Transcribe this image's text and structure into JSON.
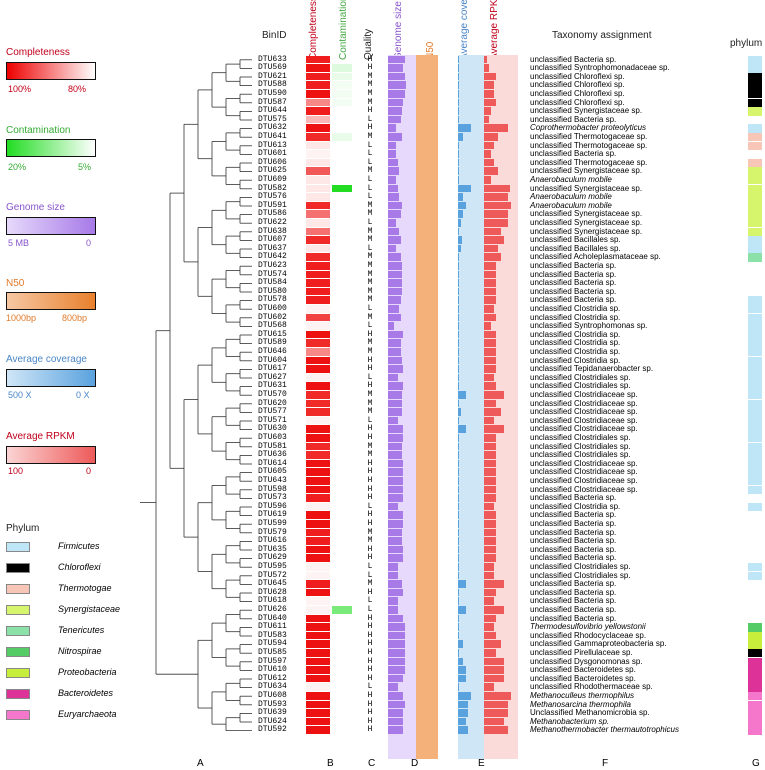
{
  "legends": {
    "completeness": {
      "title": "Completeness",
      "left": "100%",
      "right": "80%",
      "colors": [
        "#ee0000",
        "#ffffff"
      ]
    },
    "contamination": {
      "title": "Contamination",
      "left": "20%",
      "right": "5%",
      "colors": [
        "#22dd22",
        "#ffffff"
      ]
    },
    "genome_size": {
      "title": "Genome size",
      "left": "5 MB",
      "right": "0",
      "colors": [
        "#e6d9fb",
        "#a77ae8"
      ]
    },
    "n50": {
      "title": "N50",
      "left": "1000bp",
      "right": "800bp",
      "colors": [
        "#f6c8a3",
        "#e8802e"
      ]
    },
    "avg_coverage": {
      "title": "Average coverage",
      "left": "500 X",
      "right": "0 X",
      "colors": [
        "#cfe6f7",
        "#5aa2de"
      ]
    },
    "avg_rpkm": {
      "title": "Average RPKM",
      "left": "100",
      "right": "0",
      "colors": [
        "#fbd4d4",
        "#ee5a5a"
      ]
    }
  },
  "headers": {
    "binid": "BinID",
    "completeness": "Completeness",
    "contamination": "Contamination",
    "quality": "Quality",
    "genome_size": "Genome size",
    "n50": "N50",
    "avg_coverage": "Average coverage",
    "avg_rpkm": "Average RPKM",
    "taxonomy": "Taxonomy assignment",
    "phylum": "phylum"
  },
  "panel_labels": {
    "A": "A",
    "B": "B",
    "C": "C",
    "D": "D",
    "E": "E",
    "F": "F",
    "G": "G"
  },
  "phylum_legend": {
    "title": "Phylum",
    "items": [
      {
        "name": "Firmicutes",
        "color": "#bfe6f7"
      },
      {
        "name": "Chloroflexi",
        "color": "#000000"
      },
      {
        "name": "Thermotogae",
        "color": "#f7c6b6"
      },
      {
        "name": "Synergistaceae",
        "color": "#d7f56c"
      },
      {
        "name": "Tenericutes",
        "color": "#8ce1a8"
      },
      {
        "name": "Nitrospirae",
        "color": "#55cc66"
      },
      {
        "name": "Proteobacteria",
        "color": "#c8ee3c"
      },
      {
        "name": "Bacteroidetes",
        "color": "#dd3399"
      },
      {
        "name": "Euryarchaeota",
        "color": "#f477cc"
      }
    ]
  },
  "rows": [
    {
      "bin": "DTU633",
      "q": "H",
      "tax": "unclassified Bacteria sp.",
      "c": 0.95,
      "k": 0,
      "g": 0.6,
      "v": 0.05,
      "r": 0.1,
      "ph": 0
    },
    {
      "bin": "DTU569",
      "q": "H",
      "tax": "unclassified Syntrophomonadaceae sp.",
      "c": 1.0,
      "k": 0.15,
      "g": 0.55,
      "v": 0.05,
      "r": 0.15,
      "ph": 0
    },
    {
      "bin": "DTU621",
      "q": "M",
      "tax": "unclassified Chloroflexi sp.",
      "c": 0.95,
      "k": 0.1,
      "g": 0.6,
      "v": 0.05,
      "r": 0.35,
      "ph": 1
    },
    {
      "bin": "DTU588",
      "q": "M",
      "tax": "unclassified Chloroflexi sp.",
      "c": 0.95,
      "k": 0.05,
      "g": 0.65,
      "v": 0.05,
      "r": 0.3,
      "ph": 1
    },
    {
      "bin": "DTU590",
      "q": "M",
      "tax": "unclassified Chloroflexi sp.",
      "c": 1.0,
      "k": 0.05,
      "g": 0.6,
      "v": 0.05,
      "r": 0.3,
      "ph": 1
    },
    {
      "bin": "DTU587",
      "q": "M",
      "tax": "unclassified Chloroflexi sp.",
      "c": 0.5,
      "k": 0.05,
      "g": 0.55,
      "v": 0.05,
      "r": 0.35,
      "ph": 1
    },
    {
      "bin": "DTU644",
      "q": "H",
      "tax": "unclassified Synergistaceae sp.",
      "c": 0.95,
      "k": 0,
      "g": 0.5,
      "v": 0.05,
      "r": 0.2,
      "ph": 3
    },
    {
      "bin": "DTU575",
      "q": "L",
      "tax": "unclassified Bacteria sp.",
      "c": 0.3,
      "k": 0,
      "g": 0.45,
      "v": 0.05,
      "r": 0.15,
      "ph": null
    },
    {
      "bin": "DTU632",
      "q": "H",
      "tax": "Coprothermobacter proteolyticus",
      "c": 1.0,
      "k": 0,
      "g": 0.3,
      "v": 0.5,
      "r": 0.7,
      "ph": 0
    },
    {
      "bin": "DTU641",
      "q": "M",
      "tax": "unclassified Thermotogaceae sp.",
      "c": 0.9,
      "k": 0.1,
      "g": 0.5,
      "v": 0.2,
      "r": 0.4,
      "ph": 2
    },
    {
      "bin": "DTU613",
      "q": "L",
      "tax": "unclassified Thermotogaceae sp.",
      "c": 0.1,
      "k": 0,
      "g": 0.3,
      "v": 0.05,
      "r": 0.3,
      "ph": 2
    },
    {
      "bin": "DTU601",
      "q": "L",
      "tax": "unclassified Bacteria sp.",
      "c": 0.05,
      "k": 0,
      "g": 0.3,
      "v": 0.05,
      "r": 0.2,
      "ph": null
    },
    {
      "bin": "DTU606",
      "q": "L",
      "tax": "unclassified Thermotogaceae sp.",
      "c": 0.1,
      "k": 0,
      "g": 0.35,
      "v": 0.05,
      "r": 0.3,
      "ph": 2
    },
    {
      "bin": "DTU625",
      "q": "M",
      "tax": "unclassified Synergistaceae sp.",
      "c": 0.7,
      "k": 0,
      "g": 0.4,
      "v": 0.05,
      "r": 0.4,
      "ph": 3
    },
    {
      "bin": "DTU609",
      "q": "L",
      "tax": "Anaerobaculum mobile",
      "c": 0.1,
      "k": 0,
      "g": 0.3,
      "v": 0.05,
      "r": 0.2,
      "ph": 3
    },
    {
      "bin": "DTU582",
      "q": "L",
      "tax": "unclassified Synergistaceae sp.",
      "c": 0.1,
      "k": 1.0,
      "g": 0.35,
      "v": 0.5,
      "r": 0.75,
      "ph": 3
    },
    {
      "bin": "DTU576",
      "q": "L",
      "tax": "Anaerobaculum mobile",
      "c": 0.1,
      "k": 0,
      "g": 0.4,
      "v": 0.2,
      "r": 0.7,
      "ph": 3
    },
    {
      "bin": "DTU591",
      "q": "M",
      "tax": "Anaerobaculum mobile",
      "c": 0.9,
      "k": 0,
      "g": 0.5,
      "v": 0.3,
      "r": 0.8,
      "ph": 3
    },
    {
      "bin": "DTU586",
      "q": "M",
      "tax": "unclassified Synergistaceae sp.",
      "c": 0.6,
      "k": 0,
      "g": 0.45,
      "v": 0.2,
      "r": 0.7,
      "ph": 3
    },
    {
      "bin": "DTU622",
      "q": "L",
      "tax": "unclassified Synergistaceae sp.",
      "c": 0.1,
      "k": 0,
      "g": 0.3,
      "v": 0.1,
      "r": 0.7,
      "ph": 3
    },
    {
      "bin": "DTU638",
      "q": "M",
      "tax": "unclassified Synergistaceae sp.",
      "c": 0.6,
      "k": 0,
      "g": 0.4,
      "v": 0.05,
      "r": 0.5,
      "ph": 3
    },
    {
      "bin": "DTU607",
      "q": "M",
      "tax": "unclassified Bacillales sp.",
      "c": 0.9,
      "k": 0,
      "g": 0.45,
      "v": 0.15,
      "r": 0.6,
      "ph": 0
    },
    {
      "bin": "DTU637",
      "q": "L",
      "tax": "unclassified Bacillales sp.",
      "c": 0.1,
      "k": 0,
      "g": 0.3,
      "v": 0.1,
      "r": 0.4,
      "ph": 0
    },
    {
      "bin": "DTU642",
      "q": "M",
      "tax": "unclassified Acholeplasmataceae sp.",
      "c": 0.9,
      "k": 0,
      "g": 0.45,
      "v": 0.05,
      "r": 0.5,
      "ph": 4
    },
    {
      "bin": "DTU623",
      "q": "M",
      "tax": "unclassified Bacteria sp.",
      "c": 0.95,
      "k": 0,
      "g": 0.5,
      "v": 0.05,
      "r": 0.35,
      "ph": null
    },
    {
      "bin": "DTU574",
      "q": "M",
      "tax": "unclassified Bacteria sp.",
      "c": 0.95,
      "k": 0,
      "g": 0.5,
      "v": 0.05,
      "r": 0.35,
      "ph": null
    },
    {
      "bin": "DTU584",
      "q": "M",
      "tax": "unclassified Bacteria sp.",
      "c": 0.95,
      "k": 0,
      "g": 0.5,
      "v": 0.05,
      "r": 0.35,
      "ph": null
    },
    {
      "bin": "DTU580",
      "q": "M",
      "tax": "unclassified Bacteria sp.",
      "c": 0.95,
      "k": 0,
      "g": 0.5,
      "v": 0.05,
      "r": 0.35,
      "ph": null
    },
    {
      "bin": "DTU578",
      "q": "M",
      "tax": "unclassified Bacteria sp.",
      "c": 0.95,
      "k": 0,
      "g": 0.45,
      "v": 0.05,
      "r": 0.35,
      "ph": 0
    },
    {
      "bin": "DTU600",
      "q": "L",
      "tax": "unclassified Clostridia sp.",
      "c": 0.05,
      "k": 0,
      "g": 0.4,
      "v": 0.05,
      "r": 0.3,
      "ph": 0
    },
    {
      "bin": "DTU602",
      "q": "M",
      "tax": "unclassified Clostridia sp.",
      "c": 0.8,
      "k": 0,
      "g": 0.45,
      "v": 0.05,
      "r": 0.35,
      "ph": 0
    },
    {
      "bin": "DTU568",
      "q": "L",
      "tax": "unclassified Syntrophomonas sp.",
      "c": 0.05,
      "k": 0,
      "g": 0.2,
      "v": 0.05,
      "r": 0.2,
      "ph": 0
    },
    {
      "bin": "DTU615",
      "q": "H",
      "tax": "unclassified Clostridia sp.",
      "c": 1.0,
      "k": 0,
      "g": 0.55,
      "v": 0.05,
      "r": 0.35,
      "ph": 0
    },
    {
      "bin": "DTU589",
      "q": "M",
      "tax": "unclassified Clostridia sp.",
      "c": 0.9,
      "k": 0,
      "g": 0.45,
      "v": 0.05,
      "r": 0.35,
      "ph": 0
    },
    {
      "bin": "DTU646",
      "q": "M",
      "tax": "unclassified Clostridia sp.",
      "c": 0.5,
      "k": 0,
      "g": 0.45,
      "v": 0.05,
      "r": 0.35,
      "ph": 0
    },
    {
      "bin": "DTU604",
      "q": "H",
      "tax": "unclassified Clostridia sp.",
      "c": 1.0,
      "k": 0,
      "g": 0.5,
      "v": 0.05,
      "r": 0.35,
      "ph": 0
    },
    {
      "bin": "DTU617",
      "q": "H",
      "tax": "unclassified Tepidanaerobacter sp.",
      "c": 1.0,
      "k": 0,
      "g": 0.55,
      "v": 0.05,
      "r": 0.35,
      "ph": 0
    },
    {
      "bin": "DTU627",
      "q": "L",
      "tax": "unclassified Clostridiales sp.",
      "c": 0.05,
      "k": 0,
      "g": 0.35,
      "v": 0.05,
      "r": 0.3,
      "ph": 0
    },
    {
      "bin": "DTU631",
      "q": "H",
      "tax": "unclassified Clostridiales sp.",
      "c": 1.0,
      "k": 0,
      "g": 0.55,
      "v": 0.05,
      "r": 0.35,
      "ph": 0
    },
    {
      "bin": "DTU570",
      "q": "M",
      "tax": "unclassified Clostridiaceae sp.",
      "c": 0.9,
      "k": 0,
      "g": 0.5,
      "v": 0.3,
      "r": 0.6,
      "ph": 0
    },
    {
      "bin": "DTU620",
      "q": "M",
      "tax": "unclassified Clostridiaceae sp.",
      "c": 0.9,
      "k": 0,
      "g": 0.5,
      "v": 0.05,
      "r": 0.35,
      "ph": 0
    },
    {
      "bin": "DTU577",
      "q": "M",
      "tax": "unclassified Clostridiaceae sp.",
      "c": 0.9,
      "k": 0,
      "g": 0.5,
      "v": 0.1,
      "r": 0.5,
      "ph": 0
    },
    {
      "bin": "DTU571",
      "q": "L",
      "tax": "unclassified Clostridiaceae sp.",
      "c": 0.05,
      "k": 0,
      "g": 0.35,
      "v": 0.05,
      "r": 0.3,
      "ph": 0
    },
    {
      "bin": "DTU630",
      "q": "H",
      "tax": "unclassified Clostridiaceae sp.",
      "c": 1.0,
      "k": 0,
      "g": 0.55,
      "v": 0.3,
      "r": 0.6,
      "ph": 0
    },
    {
      "bin": "DTU603",
      "q": "H",
      "tax": "unclassified Clostridiales sp.",
      "c": 1.0,
      "k": 0,
      "g": 0.55,
      "v": 0.05,
      "r": 0.35,
      "ph": 0
    },
    {
      "bin": "DTU581",
      "q": "M",
      "tax": "unclassified Clostridiales sp.",
      "c": 0.9,
      "k": 0,
      "g": 0.5,
      "v": 0.05,
      "r": 0.35,
      "ph": 0
    },
    {
      "bin": "DTU636",
      "q": "M",
      "tax": "unclassified Clostridiales sp.",
      "c": 0.9,
      "k": 0,
      "g": 0.5,
      "v": 0.05,
      "r": 0.35,
      "ph": 0
    },
    {
      "bin": "DTU614",
      "q": "H",
      "tax": "unclassified Clostridiaceae sp.",
      "c": 1.0,
      "k": 0,
      "g": 0.55,
      "v": 0.05,
      "r": 0.35,
      "ph": 0
    },
    {
      "bin": "DTU605",
      "q": "H",
      "tax": "unclassified Clostridiaceae sp.",
      "c": 1.0,
      "k": 0,
      "g": 0.55,
      "v": 0.05,
      "r": 0.35,
      "ph": 0
    },
    {
      "bin": "DTU643",
      "q": "H",
      "tax": "unclassified Clostridiaceae sp.",
      "c": 1.0,
      "k": 0,
      "g": 0.55,
      "v": 0.05,
      "r": 0.35,
      "ph": 0
    },
    {
      "bin": "DTU598",
      "q": "H",
      "tax": "unclassified Clostridiaceae sp.",
      "c": 1.0,
      "k": 0,
      "g": 0.55,
      "v": 0.05,
      "r": 0.35,
      "ph": 0
    },
    {
      "bin": "DTU573",
      "q": "H",
      "tax": "unclassified Bacteria sp.",
      "c": 0.95,
      "k": 0,
      "g": 0.55,
      "v": 0.05,
      "r": 0.35,
      "ph": null
    },
    {
      "bin": "DTU596",
      "q": "L",
      "tax": "unclassified Clostridia sp.",
      "c": 0.05,
      "k": 0,
      "g": 0.35,
      "v": 0.05,
      "r": 0.3,
      "ph": 0
    },
    {
      "bin": "DTU619",
      "q": "H",
      "tax": "unclassified Bacteria sp.",
      "c": 1.0,
      "k": 0,
      "g": 0.55,
      "v": 0.05,
      "r": 0.35,
      "ph": null
    },
    {
      "bin": "DTU599",
      "q": "H",
      "tax": "unclassified Bacteria sp.",
      "c": 1.0,
      "k": 0,
      "g": 0.55,
      "v": 0.05,
      "r": 0.35,
      "ph": null
    },
    {
      "bin": "DTU579",
      "q": "M",
      "tax": "unclassified Bacteria sp.",
      "c": 0.95,
      "k": 0,
      "g": 0.5,
      "v": 0.05,
      "r": 0.35,
      "ph": null
    },
    {
      "bin": "DTU616",
      "q": "M",
      "tax": "unclassified Bacteria sp.",
      "c": 0.95,
      "k": 0,
      "g": 0.5,
      "v": 0.05,
      "r": 0.35,
      "ph": null
    },
    {
      "bin": "DTU635",
      "q": "H",
      "tax": "unclassified Bacteria sp.",
      "c": 1.0,
      "k": 0,
      "g": 0.55,
      "v": 0.05,
      "r": 0.35,
      "ph": null
    },
    {
      "bin": "DTU629",
      "q": "H",
      "tax": "unclassified Bacteria sp.",
      "c": 1.0,
      "k": 0,
      "g": 0.55,
      "v": 0.05,
      "r": 0.35,
      "ph": null
    },
    {
      "bin": "DTU595",
      "q": "L",
      "tax": "unclassified Clostridiales sp.",
      "c": 0.05,
      "k": 0,
      "g": 0.35,
      "v": 0.05,
      "r": 0.3,
      "ph": 0
    },
    {
      "bin": "DTU572",
      "q": "L",
      "tax": "unclassified Clostridiales sp.",
      "c": 0.05,
      "k": 0,
      "g": 0.35,
      "v": 0.05,
      "r": 0.3,
      "ph": 0
    },
    {
      "bin": "DTU645",
      "q": "M",
      "tax": "unclassified Bacteria sp.",
      "c": 0.95,
      "k": 0,
      "g": 0.5,
      "v": 0.3,
      "r": 0.6,
      "ph": null
    },
    {
      "bin": "DTU628",
      "q": "H",
      "tax": "unclassified Bacteria sp.",
      "c": 1.0,
      "k": 0,
      "g": 0.55,
      "v": 0.05,
      "r": 0.35,
      "ph": null
    },
    {
      "bin": "DTU618",
      "q": "L",
      "tax": "unclassified Bacteria sp.",
      "c": 0.05,
      "k": 0,
      "g": 0.35,
      "v": 0.05,
      "r": 0.3,
      "ph": null
    },
    {
      "bin": "DTU626",
      "q": "L",
      "tax": "unclassified Bacteria sp.",
      "c": 0.05,
      "k": 0.6,
      "g": 0.35,
      "v": 0.3,
      "r": 0.6,
      "ph": null
    },
    {
      "bin": "DTU640",
      "q": "H",
      "tax": "unclassified Bacteria sp.",
      "c": 1.0,
      "k": 0,
      "g": 0.55,
      "v": 0.05,
      "r": 0.35,
      "ph": null
    },
    {
      "bin": "DTU611",
      "q": "H",
      "tax": "Thermodesulfovibrio yellowstonii",
      "c": 1.0,
      "k": 0,
      "g": 0.6,
      "v": 0.05,
      "r": 0.3,
      "ph": 5
    },
    {
      "bin": "DTU583",
      "q": "H",
      "tax": "unclassified Rhodocyclaceae sp.",
      "c": 1.0,
      "k": 0,
      "g": 0.6,
      "v": 0.05,
      "r": 0.35,
      "ph": 6
    },
    {
      "bin": "DTU594",
      "q": "H",
      "tax": "unclassified Gammaproteobacteria sp.",
      "c": 1.0,
      "k": 0,
      "g": 0.6,
      "v": 0.2,
      "r": 0.5,
      "ph": 6
    },
    {
      "bin": "DTU585",
      "q": "H",
      "tax": "unclassified Pirellulaceae sp.",
      "c": 1.0,
      "k": 0,
      "g": 0.6,
      "v": 0.05,
      "r": 0.35,
      "ph": 1
    },
    {
      "bin": "DTU597",
      "q": "H",
      "tax": "unclassified Dysgonomonas sp.",
      "c": 1.0,
      "k": 0,
      "g": 0.6,
      "v": 0.2,
      "r": 0.6,
      "ph": 7
    },
    {
      "bin": "DTU610",
      "q": "H",
      "tax": "unclassified Bacteroidetes sp.",
      "c": 1.0,
      "k": 0,
      "g": 0.6,
      "v": 0.3,
      "r": 0.6,
      "ph": 7
    },
    {
      "bin": "DTU612",
      "q": "H",
      "tax": "unclassified Bacteroidetes sp.",
      "c": 1.0,
      "k": 0,
      "g": 0.55,
      "v": 0.3,
      "r": 0.6,
      "ph": 7
    },
    {
      "bin": "DTU634",
      "q": "L",
      "tax": "unclassified Rhodothermaceae sp.",
      "c": 0.05,
      "k": 0,
      "g": 0.35,
      "v": 0.05,
      "r": 0.3,
      "ph": 7
    },
    {
      "bin": "DTU608",
      "q": "H",
      "tax": "Methanoculleus thermophilus",
      "c": 1.0,
      "k": 0,
      "g": 0.55,
      "v": 0.5,
      "r": 0.8,
      "ph": 8
    },
    {
      "bin": "DTU593",
      "q": "H",
      "tax": "Methanosarcina thermophila",
      "c": 1.0,
      "k": 0,
      "g": 0.6,
      "v": 0.4,
      "r": 0.7,
      "ph": 8
    },
    {
      "bin": "DTU639",
      "q": "H",
      "tax": "Unclassified Methanomicrobia sp.",
      "c": 1.0,
      "k": 0,
      "g": 0.55,
      "v": 0.4,
      "r": 0.7,
      "ph": 8
    },
    {
      "bin": "DTU624",
      "q": "H",
      "tax": "Methanobacterium sp.",
      "c": 1.0,
      "k": 0,
      "g": 0.55,
      "v": 0.3,
      "r": 0.6,
      "ph": 8
    },
    {
      "bin": "DTU592",
      "q": "H",
      "tax": "Methanothermobacter thermautotrophicus",
      "c": 1.0,
      "k": 0,
      "g": 0.55,
      "v": 0.4,
      "r": 0.7,
      "ph": 8
    }
  ],
  "italic_bins": [
    "DTU632",
    "DTU609",
    "DTU576",
    "DTU591",
    "DTU611",
    "DTU608",
    "DTU593",
    "DTU624",
    "DTU592"
  ]
}
